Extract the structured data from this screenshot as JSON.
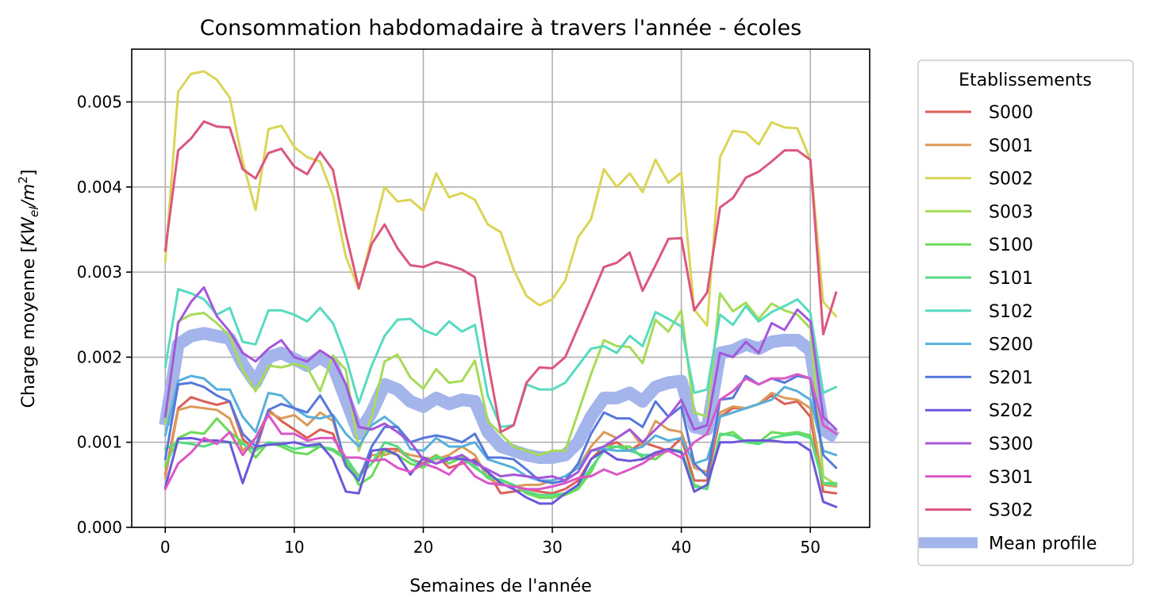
{
  "chart_data": {
    "type": "line",
    "title": "Consommation habdomadaire à travers l'année - écoles",
    "xlabel": "Semaines de l'année",
    "ylabel_main": "Charge moyenne [",
    "ylabel_kw": "KW",
    "ylabel_el": "el",
    "ylabel_m": "/m",
    "ylabel_sq": "2",
    "ylabel_close": "]",
    "xlim": [
      -2.6,
      54.6
    ],
    "ylim": [
      0,
      0.00562
    ],
    "xticks": [
      0,
      10,
      20,
      30,
      40,
      50
    ],
    "xtick_labels": [
      "0",
      "10",
      "20",
      "30",
      "40",
      "50"
    ],
    "yticks": [
      0,
      0.001,
      0.002,
      0.003,
      0.004,
      0.005
    ],
    "ytick_labels": [
      "0.000",
      "0.001",
      "0.002",
      "0.003",
      "0.004",
      "0.005"
    ],
    "grid": true,
    "legend_title": "Etablissements",
    "legend_placement": "outside-right",
    "series": [
      {
        "name": "S000",
        "color": "#db5f57",
        "values": [
          0.00062,
          0.0014,
          0.00153,
          0.00148,
          0.00144,
          0.00148,
          0.00104,
          0.0009,
          0.00138,
          0.00125,
          0.00115,
          0.00105,
          0.00115,
          0.0011,
          0.00072,
          0.0006,
          0.00075,
          0.00092,
          0.00092,
          0.0008,
          0.00075,
          0.00085,
          0.0007,
          0.00075,
          0.0008,
          0.00065,
          0.0004,
          0.00042,
          0.00045,
          0.00042,
          0.0004,
          0.00045,
          0.00055,
          0.0008,
          0.00095,
          0.001,
          0.0009,
          0.001,
          0.00095,
          0.0009,
          0.00105,
          0.00055,
          0.00055,
          0.0013,
          0.0014,
          0.0014,
          0.00145,
          0.00155,
          0.00145,
          0.00148,
          0.0013,
          0.00042,
          0.0004
        ]
      },
      {
        "name": "S001",
        "color": "#db9a57",
        "values": [
          0.00058,
          0.00138,
          0.00142,
          0.0014,
          0.00138,
          0.00128,
          0.0009,
          0.00105,
          0.00135,
          0.00128,
          0.00132,
          0.0012,
          0.00135,
          0.00125,
          0.00075,
          0.0006,
          0.00085,
          0.00085,
          0.0009,
          0.00085,
          0.00082,
          0.0008,
          0.00085,
          0.00095,
          0.00085,
          0.00058,
          0.0005,
          0.00048,
          0.0005,
          0.0005,
          0.00055,
          0.0006,
          0.0007,
          0.00095,
          0.00112,
          0.00105,
          0.00115,
          0.00095,
          0.00125,
          0.00115,
          0.00112,
          0.0007,
          0.00065,
          0.00135,
          0.00142,
          0.0014,
          0.00145,
          0.00158,
          0.00152,
          0.0015,
          0.0014,
          0.0005,
          0.00048
        ]
      },
      {
        "name": "S002",
        "color": "#dbd557",
        "values": [
          0.00312,
          0.00512,
          0.00533,
          0.00536,
          0.00526,
          0.00505,
          0.0043,
          0.00373,
          0.00468,
          0.00472,
          0.00447,
          0.00435,
          0.0043,
          0.0039,
          0.00318,
          0.0028,
          0.0034,
          0.004,
          0.00383,
          0.00385,
          0.00372,
          0.00416,
          0.00388,
          0.00393,
          0.00385,
          0.00356,
          0.00347,
          0.00303,
          0.00272,
          0.00261,
          0.00268,
          0.0029,
          0.00341,
          0.00362,
          0.00421,
          0.004,
          0.00416,
          0.00394,
          0.00432,
          0.00405,
          0.00417,
          0.00256,
          0.00237,
          0.00435,
          0.00466,
          0.00464,
          0.0045,
          0.00476,
          0.0047,
          0.00469,
          0.00432,
          0.00265,
          0.00248
        ]
      },
      {
        "name": "S003",
        "color": "#a5db57",
        "values": [
          0.00122,
          0.00242,
          0.0025,
          0.00252,
          0.0024,
          0.00225,
          0.00185,
          0.0016,
          0.0019,
          0.00188,
          0.00192,
          0.00188,
          0.0016,
          0.00202,
          0.00185,
          0.0009,
          0.0013,
          0.00195,
          0.00203,
          0.00176,
          0.00163,
          0.00186,
          0.0017,
          0.00172,
          0.00196,
          0.00125,
          0.0011,
          0.00095,
          0.0009,
          0.00085,
          0.0009,
          0.0009,
          0.00135,
          0.0018,
          0.0022,
          0.00213,
          0.00212,
          0.00193,
          0.00244,
          0.0023,
          0.00255,
          0.00135,
          0.0013,
          0.00275,
          0.00254,
          0.00264,
          0.00245,
          0.00263,
          0.00255,
          0.0025,
          0.00234,
          0.0006,
          0.0005
        ]
      },
      {
        "name": "S100",
        "color": "#6adb57",
        "values": [
          0.00072,
          0.00105,
          0.00112,
          0.0011,
          0.00128,
          0.00112,
          0.001,
          0.00082,
          0.001,
          0.00095,
          0.00088,
          0.00086,
          0.00095,
          0.0009,
          0.0008,
          0.0005,
          0.0006,
          0.0009,
          0.00085,
          0.00075,
          0.0007,
          0.00085,
          0.00075,
          0.00082,
          0.0007,
          0.0006,
          0.00055,
          0.0005,
          0.0004,
          0.00035,
          0.00035,
          0.00038,
          0.00045,
          0.00065,
          0.00095,
          0.00095,
          0.00095,
          0.00082,
          0.0008,
          0.00092,
          0.0009,
          0.0005,
          0.00045,
          0.00108,
          0.00112,
          0.001,
          0.001,
          0.00112,
          0.0011,
          0.00112,
          0.00108,
          0.00052,
          0.00052
        ]
      },
      {
        "name": "S101",
        "color": "#57db80",
        "values": [
          0.00092,
          0.001,
          0.00098,
          0.00095,
          0.001,
          0.001,
          0.00098,
          0.0009,
          0.001,
          0.00098,
          0.00092,
          0.00095,
          0.00095,
          0.00092,
          0.00082,
          0.0006,
          0.00075,
          0.001,
          0.00095,
          0.0008,
          0.00072,
          0.00082,
          0.0008,
          0.0008,
          0.00072,
          0.00058,
          0.00056,
          0.0005,
          0.00042,
          0.00038,
          0.00038,
          0.0004,
          0.00048,
          0.0007,
          0.0009,
          0.00095,
          0.0009,
          0.00085,
          0.00085,
          0.0009,
          0.0009,
          0.00048,
          0.00045,
          0.0011,
          0.00108,
          0.001,
          0.00098,
          0.00105,
          0.00108,
          0.0011,
          0.00105,
          0.00052,
          0.0005
        ]
      },
      {
        "name": "S102",
        "color": "#57dbc0",
        "values": [
          0.00188,
          0.0028,
          0.00275,
          0.00268,
          0.0025,
          0.00258,
          0.00218,
          0.00215,
          0.00255,
          0.00255,
          0.0025,
          0.00242,
          0.00258,
          0.0024,
          0.002,
          0.00146,
          0.0019,
          0.00225,
          0.00244,
          0.00245,
          0.00232,
          0.00226,
          0.00242,
          0.0023,
          0.00238,
          0.00155,
          0.00118,
          0.0012,
          0.00168,
          0.00162,
          0.00162,
          0.0017,
          0.0019,
          0.0021,
          0.00213,
          0.00205,
          0.00225,
          0.00213,
          0.00253,
          0.00245,
          0.00236,
          0.00158,
          0.00162,
          0.0025,
          0.00238,
          0.0026,
          0.00242,
          0.00253,
          0.0026,
          0.00268,
          0.00252,
          0.00158,
          0.00165
        ]
      },
      {
        "name": "S200",
        "color": "#57b0db",
        "values": [
          0.00108,
          0.00172,
          0.00178,
          0.00175,
          0.00162,
          0.00162,
          0.0013,
          0.00112,
          0.00158,
          0.00155,
          0.0014,
          0.0013,
          0.00128,
          0.00132,
          0.0011,
          0.00095,
          0.0012,
          0.0013,
          0.00118,
          0.00092,
          0.0009,
          0.00105,
          0.00095,
          0.00095,
          0.001,
          0.0008,
          0.00075,
          0.0007,
          0.0006,
          0.00055,
          0.00055,
          0.0006,
          0.0007,
          0.0009,
          0.00092,
          0.0009,
          0.0009,
          0.00095,
          0.00108,
          0.00102,
          0.00105,
          0.00075,
          0.0008,
          0.0013,
          0.00135,
          0.0014,
          0.00145,
          0.0015,
          0.00165,
          0.0016,
          0.0015,
          0.0009,
          0.00085
        ]
      },
      {
        "name": "S201",
        "color": "#5778db",
        "values": [
          0.0008,
          0.00168,
          0.0017,
          0.00165,
          0.00155,
          0.00148,
          0.0011,
          0.00095,
          0.00138,
          0.00145,
          0.0014,
          0.00135,
          0.00155,
          0.0013,
          0.00072,
          0.00055,
          0.00095,
          0.00118,
          0.00118,
          0.001,
          0.00105,
          0.00108,
          0.00105,
          0.001,
          0.0011,
          0.00082,
          0.00082,
          0.0008,
          0.00068,
          0.00055,
          0.00052,
          0.00055,
          0.00075,
          0.0011,
          0.00135,
          0.00128,
          0.00128,
          0.00118,
          0.00148,
          0.0013,
          0.00142,
          0.00075,
          0.0006,
          0.0015,
          0.00152,
          0.00178,
          0.00168,
          0.00175,
          0.0017,
          0.00178,
          0.00175,
          0.00085,
          0.0007
        ]
      },
      {
        "name": "S202",
        "color": "#6a57db",
        "values": [
          0.00047,
          0.00104,
          0.00105,
          0.00102,
          0.00102,
          0.001,
          0.00052,
          0.00095,
          0.00097,
          0.00098,
          0.001,
          0.00096,
          0.00098,
          0.0008,
          0.00042,
          0.0004,
          0.0009,
          0.00092,
          0.00085,
          0.00062,
          0.00082,
          0.00075,
          0.00082,
          0.0008,
          0.00078,
          0.00065,
          0.00052,
          0.00045,
          0.00035,
          0.00028,
          0.00028,
          0.0004,
          0.0005,
          0.0008,
          0.0009,
          0.0008,
          0.00078,
          0.0008,
          0.00088,
          0.00092,
          0.00088,
          0.00042,
          0.0005,
          0.001,
          0.001,
          0.00102,
          0.00102,
          0.00102,
          0.001,
          0.001,
          0.0009,
          0.0003,
          0.00024
        ]
      },
      {
        "name": "S300",
        "color": "#a557db",
        "values": [
          0.0013,
          0.0024,
          0.00265,
          0.00282,
          0.00248,
          0.0023,
          0.00205,
          0.00195,
          0.0021,
          0.0022,
          0.002,
          0.00195,
          0.00208,
          0.00198,
          0.00168,
          0.00118,
          0.00115,
          0.00122,
          0.00112,
          0.001,
          0.0008,
          0.00075,
          0.0008,
          0.00085,
          0.00075,
          0.00068,
          0.0006,
          0.00062,
          0.0006,
          0.00058,
          0.0006,
          0.00055,
          0.00065,
          0.0009,
          0.00095,
          0.00105,
          0.00115,
          0.001,
          0.00115,
          0.0013,
          0.0015,
          0.00115,
          0.0012,
          0.00205,
          0.002,
          0.00218,
          0.00205,
          0.0024,
          0.00232,
          0.00256,
          0.00242,
          0.0013,
          0.00115
        ]
      },
      {
        "name": "S301",
        "color": "#db57c8",
        "values": [
          0.00045,
          0.00075,
          0.00088,
          0.00105,
          0.00098,
          0.00112,
          0.00085,
          0.00105,
          0.00132,
          0.0011,
          0.0011,
          0.00102,
          0.00105,
          0.00105,
          0.00082,
          0.00082,
          0.00078,
          0.0008,
          0.0007,
          0.00065,
          0.00075,
          0.0007,
          0.00062,
          0.00078,
          0.0006,
          0.00052,
          0.0005,
          0.00048,
          0.00045,
          0.00045,
          0.00048,
          0.00052,
          0.00058,
          0.0006,
          0.00068,
          0.00062,
          0.00068,
          0.00075,
          0.00085,
          0.0009,
          0.00082,
          0.001,
          0.0011,
          0.0015,
          0.0016,
          0.00175,
          0.00168,
          0.00175,
          0.00175,
          0.0018,
          0.00175,
          0.0012,
          0.0011
        ]
      },
      {
        "name": "S302",
        "color": "#db577f",
        "values": [
          0.00325,
          0.00443,
          0.00457,
          0.00477,
          0.00471,
          0.0047,
          0.00421,
          0.0041,
          0.0044,
          0.00445,
          0.00424,
          0.00415,
          0.00441,
          0.0042,
          0.00345,
          0.00281,
          0.00333,
          0.00356,
          0.00328,
          0.00308,
          0.00306,
          0.00312,
          0.00308,
          0.00303,
          0.00294,
          0.00195,
          0.00112,
          0.0012,
          0.0017,
          0.00188,
          0.00187,
          0.002,
          0.00235,
          0.0027,
          0.00306,
          0.00311,
          0.00323,
          0.00278,
          0.00308,
          0.00339,
          0.0034,
          0.00255,
          0.00276,
          0.00376,
          0.00387,
          0.00411,
          0.00418,
          0.0043,
          0.00443,
          0.00443,
          0.00432,
          0.00227,
          0.00276
        ]
      }
    ],
    "mean_profile": {
      "name": "Mean profile",
      "color": "#a3b5ea",
      "values": [
        0.0012,
        0.00215,
        0.00225,
        0.00228,
        0.00225,
        0.00222,
        0.00192,
        0.0017,
        0.002,
        0.00205,
        0.00198,
        0.0019,
        0.002,
        0.0019,
        0.0015,
        0.0011,
        0.00135,
        0.00168,
        0.00162,
        0.00148,
        0.00142,
        0.00152,
        0.00145,
        0.0015,
        0.00148,
        0.00112,
        0.00095,
        0.0009,
        0.00085,
        0.00082,
        0.00082,
        0.00085,
        0.001,
        0.0013,
        0.00152,
        0.00152,
        0.00158,
        0.00148,
        0.00165,
        0.0017,
        0.00172,
        0.00118,
        0.00115,
        0.00205,
        0.00208,
        0.00215,
        0.0021,
        0.00218,
        0.0022,
        0.0022,
        0.00208,
        0.00115,
        0.00105
      ]
    }
  }
}
